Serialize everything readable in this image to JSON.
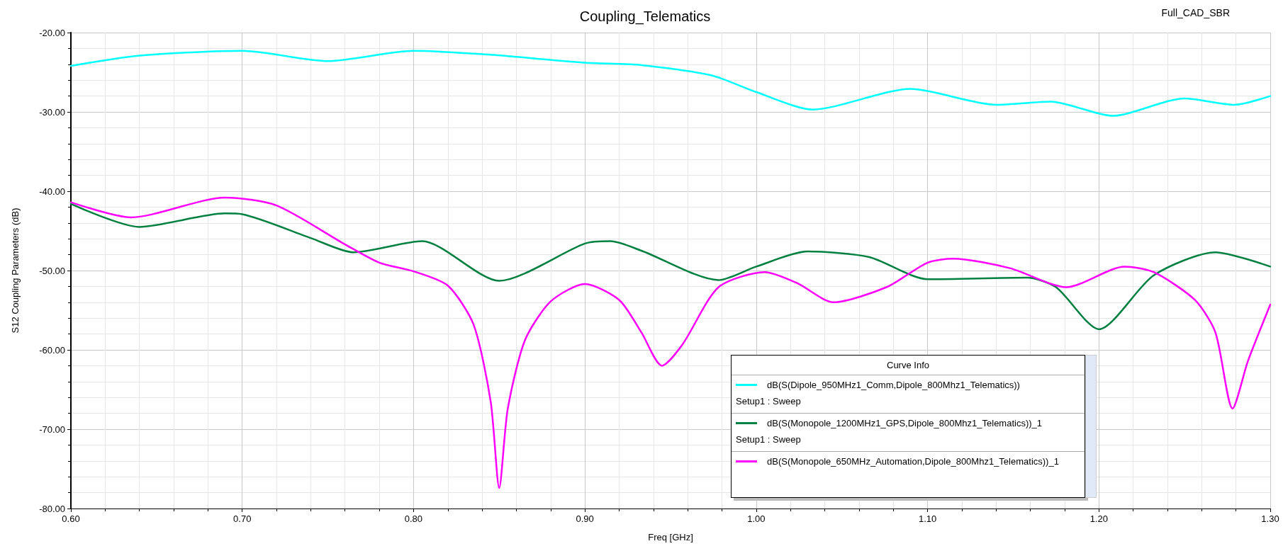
{
  "chart_data": {
    "type": "line",
    "title": "Coupling_Telematics",
    "xlabel": "Freq [GHz]",
    "ylabel": "S12 Coupling Parameters (dB)",
    "legend_title": "Curve Info",
    "legend": "bottom right",
    "grid": true,
    "marker": "none",
    "line_style": "solid",
    "annotations": [
      "Full_CAD_SBR",
      "Setup1 : Sweep",
      "Setup1 : Sweep"
    ],
    "xlim": [
      0.6,
      1.3
    ],
    "xticks": [
      {
        "value": 0.6,
        "label": "0.60"
      },
      {
        "value": 0.7,
        "label": "0.70"
      },
      {
        "value": 0.8,
        "label": "0.80"
      },
      {
        "value": 0.9,
        "label": "0.90"
      },
      {
        "value": 1.0,
        "label": "1.00"
      },
      {
        "value": 1.1,
        "label": "1.10"
      },
      {
        "value": 1.2,
        "label": "1.20"
      },
      {
        "value": 1.3,
        "label": "1.30"
      }
    ],
    "ylim": [
      -80,
      -20
    ],
    "yticks": [
      {
        "value": -80,
        "label": "-80.00"
      },
      {
        "value": -70,
        "label": "-70.00"
      },
      {
        "value": -60,
        "label": "-60.00"
      },
      {
        "value": -50,
        "label": "-50.00"
      },
      {
        "value": -40,
        "label": "-40.00"
      },
      {
        "value": -30,
        "label": "-30.00"
      },
      {
        "value": -20,
        "label": "-20.00"
      }
    ],
    "series": [
      {
        "name": "dB(S(Dipole_950MHz1_Comm,Dipole_800Mhz1_Telematics))",
        "color": "#00ffff",
        "x": [
          0.6,
          0.64,
          0.7,
          0.75,
          0.8,
          0.845,
          0.9,
          0.933,
          0.974,
          1.0,
          1.033,
          1.09,
          1.14,
          1.172,
          1.208,
          1.25,
          1.279,
          1.3
        ],
        "values": [
          -24.2,
          -22.9,
          -22.3,
          -23.6,
          -22.3,
          -22.8,
          -23.8,
          -24.1,
          -25.4,
          -27.5,
          -29.7,
          -27.1,
          -29.1,
          -28.7,
          -30.5,
          -28.3,
          -29.1,
          -28.0
        ]
      },
      {
        "name": "dB(S(Monopole_1200MHz1_GPS,Dipole_800Mhz1_Telematics))_1",
        "color": "#008040",
        "x": [
          0.6,
          0.64,
          0.69,
          0.7,
          0.74,
          0.765,
          0.805,
          0.85,
          0.9,
          0.915,
          0.933,
          0.978,
          1.0,
          1.03,
          1.066,
          1.1,
          1.158,
          1.175,
          1.2,
          1.232,
          1.268,
          1.3
        ],
        "values": [
          -41.6,
          -44.5,
          -42.8,
          -42.9,
          -45.9,
          -47.7,
          -46.3,
          -51.3,
          -46.6,
          -46.3,
          -47.5,
          -51.2,
          -49.5,
          -47.6,
          -48.3,
          -51.1,
          -50.9,
          -52.1,
          -57.4,
          -50.6,
          -47.7,
          -49.5
        ]
      },
      {
        "name": "dB(S(Monopole_650MHz_Automation,Dipole_800Mhz1_Telematics))_1",
        "color": "#ff00ff",
        "x": [
          0.6,
          0.635,
          0.69,
          0.72,
          0.76,
          0.78,
          0.8,
          0.82,
          0.835,
          0.845,
          0.85,
          0.855,
          0.865,
          0.88,
          0.9,
          0.92,
          0.933,
          0.945,
          0.957,
          0.978,
          1.005,
          1.024,
          1.045,
          1.076,
          1.1,
          1.115,
          1.148,
          1.181,
          1.215,
          1.232,
          1.256,
          1.268,
          1.278,
          1.287,
          1.3
        ],
        "values": [
          -41.4,
          -43.3,
          -40.8,
          -41.8,
          -46.7,
          -49.0,
          -50.1,
          -51.9,
          -56.8,
          -66.5,
          -77.4,
          -67.4,
          -58.8,
          -53.9,
          -51.7,
          -53.7,
          -57.8,
          -62.0,
          -59.3,
          -52.1,
          -50.2,
          -51.6,
          -54.0,
          -52.1,
          -49.0,
          -48.5,
          -49.7,
          -52.1,
          -49.5,
          -50.2,
          -53.7,
          -57.8,
          -67.4,
          -61.4,
          -54.3
        ]
      }
    ]
  }
}
